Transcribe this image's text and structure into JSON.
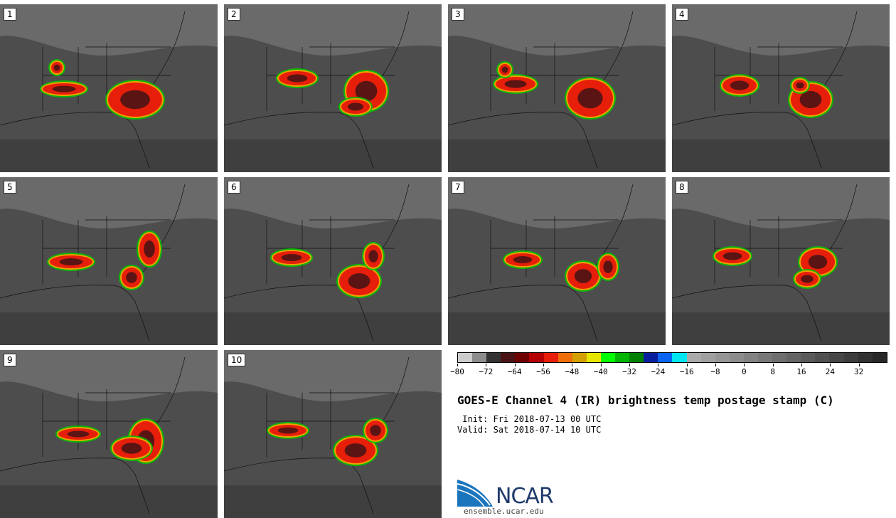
{
  "panels": [
    {
      "label": "1"
    },
    {
      "label": "2"
    },
    {
      "label": "3"
    },
    {
      "label": "4"
    },
    {
      "label": "5"
    },
    {
      "label": "6"
    },
    {
      "label": "7"
    },
    {
      "label": "8"
    },
    {
      "label": "9"
    },
    {
      "label": "10"
    }
  ],
  "colorbar": {
    "colors": [
      "#cccccc",
      "#8c8c8c",
      "#333333",
      "#4a1414",
      "#6e0000",
      "#b40000",
      "#e61e0a",
      "#f06e0a",
      "#d2a000",
      "#e6e600",
      "#00ff00",
      "#00b400",
      "#008200",
      "#0a1ea0",
      "#0a64f0",
      "#00e6f0",
      "#aaaaaa",
      "#a0a0a0",
      "#969696",
      "#8c8c8c",
      "#828282",
      "#787878",
      "#6e6e6e",
      "#646464",
      "#5a5a5a",
      "#505050",
      "#464646",
      "#3c3c3c",
      "#323232",
      "#282828"
    ],
    "tick_labels": [
      "−80",
      "−72",
      "−64",
      "−56",
      "−48",
      "−40",
      "−32",
      "−24",
      "−16",
      "−8",
      "0",
      "8",
      "16",
      "24",
      "32"
    ]
  },
  "title": "GOES-E Channel 4 (IR) brightness temp postage stamp (C)",
  "init": " Init: Fri 2018-07-13 00 UTC",
  "valid": "Valid: Sat 2018-07-14 10 UTC",
  "logo": {
    "text": "NCAR",
    "url": "ensemble.ucar.edu",
    "color": "#1f3a6b",
    "accent": "#1a75bc"
  }
}
